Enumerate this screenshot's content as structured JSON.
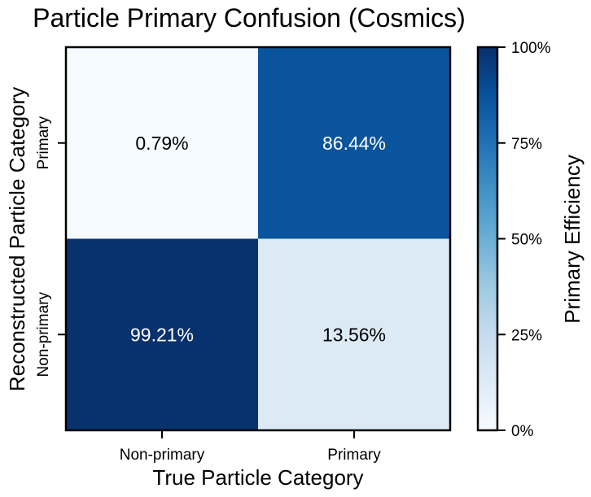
{
  "chart_data": {
    "type": "heatmap",
    "title": "Particle Primary Confusion (Cosmics)",
    "xlabel": "True Particle Category",
    "ylabel": "Reconstructed Particle Category",
    "x_categories": [
      "Non-primary",
      "Primary"
    ],
    "y_categories": [
      "Primary",
      "Non-primary"
    ],
    "values": [
      [
        0.79,
        86.44
      ],
      [
        99.21,
        13.56
      ]
    ],
    "cell_labels": [
      [
        "0.79%",
        "86.44%"
      ],
      [
        "99.21%",
        "13.56%"
      ]
    ],
    "colorbar": {
      "label": "Primary Efficiency",
      "range": [
        0,
        100
      ],
      "ticks": [
        0,
        25,
        50,
        75,
        100
      ],
      "tick_labels": [
        "0%",
        "25%",
        "50%",
        "75%",
        "100%"
      ],
      "colormap": "Blues",
      "colors": [
        "#f7fbff",
        "#deebf7",
        "#c6dbef",
        "#9ecae1",
        "#6baed6",
        "#4292c6",
        "#2171b5",
        "#08519c",
        "#08306b"
      ]
    }
  }
}
